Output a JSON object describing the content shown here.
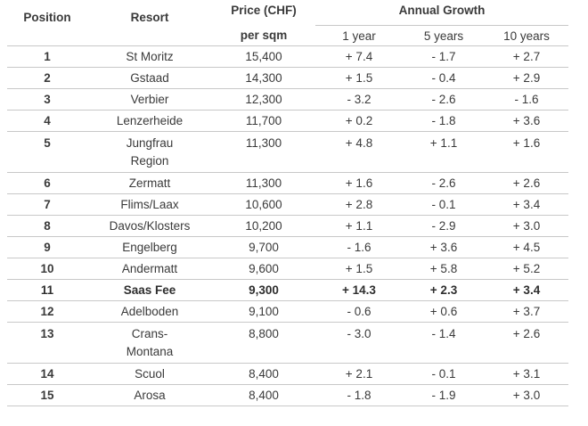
{
  "headers": {
    "position": "Position",
    "resort": "Resort",
    "price_line1": "Price (CHF)",
    "price_line2": "per sqm",
    "growth_group": "Annual Growth",
    "y1": "1 year",
    "y5": "5 years",
    "y10": "10 years"
  },
  "rows": [
    {
      "pos": "1",
      "resort": "St Moritz",
      "price": "15,400",
      "y1": "+ 7.4",
      "y5": "- 1.7",
      "y10": "+ 2.7"
    },
    {
      "pos": "2",
      "resort": "Gstaad",
      "price": "14,300",
      "y1": "+ 1.5",
      "y5": "- 0.4",
      "y10": "+ 2.9"
    },
    {
      "pos": "3",
      "resort": "Verbier",
      "price": "12,300",
      "y1": "- 3.2",
      "y5": "- 2.6",
      "y10": "- 1.6"
    },
    {
      "pos": "4",
      "resort": "Lenzerheide",
      "price": "11,700",
      "y1": "+ 0.2",
      "y5": "- 1.8",
      "y10": "+ 3.6"
    },
    {
      "pos": "5",
      "resort": "Jungfrau Region",
      "price": "11,300",
      "y1": "+ 4.8",
      "y5": "+ 1.1",
      "y10": "+ 1.6"
    },
    {
      "pos": "6",
      "resort": "Zermatt",
      "price": "11,300",
      "y1": "+ 1.6",
      "y5": "- 2.6",
      "y10": "+ 2.6"
    },
    {
      "pos": "7",
      "resort": "Flims/Laax",
      "price": "10,600",
      "y1": "+ 2.8",
      "y5": "- 0.1",
      "y10": "+ 3.4"
    },
    {
      "pos": "8",
      "resort": "Davos/Klosters",
      "price": "10,200",
      "y1": "+ 1.1",
      "y5": "- 2.9",
      "y10": "+ 3.0"
    },
    {
      "pos": "9",
      "resort": "Engelberg",
      "price": "9,700",
      "y1": "- 1.6",
      "y5": "+ 3.6",
      "y10": "+ 4.5"
    },
    {
      "pos": "10",
      "resort": "Andermatt",
      "price": "9,600",
      "y1": "+ 1.5",
      "y5": "+ 5.8",
      "y10": "+ 5.2"
    },
    {
      "pos": "11",
      "resort": "Saas Fee",
      "price": "9,300",
      "y1": "+ 14.3",
      "y5": "+ 2.3",
      "y10": "+ 3.4"
    },
    {
      "pos": "12",
      "resort": "Adelboden",
      "price": "9,100",
      "y1": "- 0.6",
      "y5": "+ 0.6",
      "y10": "+ 3.7"
    },
    {
      "pos": "13",
      "resort": "Crans-Montana",
      "price": "8,800",
      "y1": "- 3.0",
      "y5": "- 1.4",
      "y10": "+ 2.6"
    },
    {
      "pos": "14",
      "resort": "Scuol",
      "price": "8,400",
      "y1": "+ 2.1",
      "y5": "- 0.1",
      "y10": "+ 3.1"
    },
    {
      "pos": "15",
      "resort": "Arosa",
      "price": "8,400",
      "y1": "- 1.8",
      "y5": "- 1.9",
      "y10": "+ 3.0"
    }
  ]
}
